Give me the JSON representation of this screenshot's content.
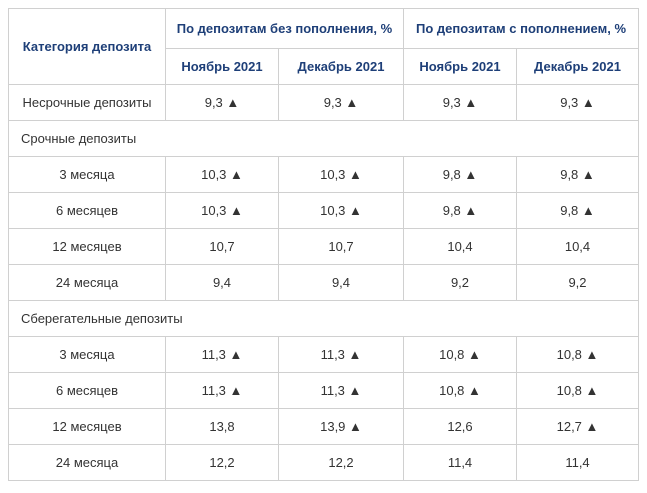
{
  "table": {
    "header": {
      "category": "Категория депозита",
      "groups": [
        "По депозитам без пополнения, %",
        "По депозитам с пополнением, %"
      ],
      "months": [
        "Ноябрь 2021",
        "Декабрь 2021",
        "Ноябрь 2021",
        "Декабрь 2021"
      ]
    },
    "rows": [
      {
        "label": "Несрочные депозиты",
        "cells": [
          "9,3 ▲",
          "9,3 ▲",
          "9,3 ▲",
          "9,3 ▲"
        ]
      },
      {
        "section": "Срочные депозиты"
      },
      {
        "label": "3 месяца",
        "cells": [
          "10,3 ▲",
          "10,3 ▲",
          "9,8 ▲",
          "9,8 ▲"
        ]
      },
      {
        "label": "6 месяцев",
        "cells": [
          "10,3 ▲",
          "10,3 ▲",
          "9,8 ▲",
          "9,8 ▲"
        ]
      },
      {
        "label": "12 месяцев",
        "cells": [
          "10,7",
          "10,7",
          "10,4",
          "10,4"
        ]
      },
      {
        "label": "24 месяца",
        "cells": [
          "9,4",
          "9,4",
          "9,2",
          "9,2"
        ]
      },
      {
        "section": "Сберегательные депозиты"
      },
      {
        "label": "3 месяца",
        "cells": [
          "11,3 ▲",
          "11,3 ▲",
          "10,8 ▲",
          "10,8 ▲"
        ]
      },
      {
        "label": "6 месяцев",
        "cells": [
          "11,3 ▲",
          "11,3 ▲",
          "10,8 ▲",
          "10,8 ▲"
        ]
      },
      {
        "label": "12 месяцев",
        "cells": [
          "13,8",
          "13,9 ▲",
          "12,6",
          "12,7 ▲"
        ]
      },
      {
        "label": "24 месяца",
        "cells": [
          "12,2",
          "12,2",
          "11,4",
          "11,4"
        ]
      }
    ]
  }
}
